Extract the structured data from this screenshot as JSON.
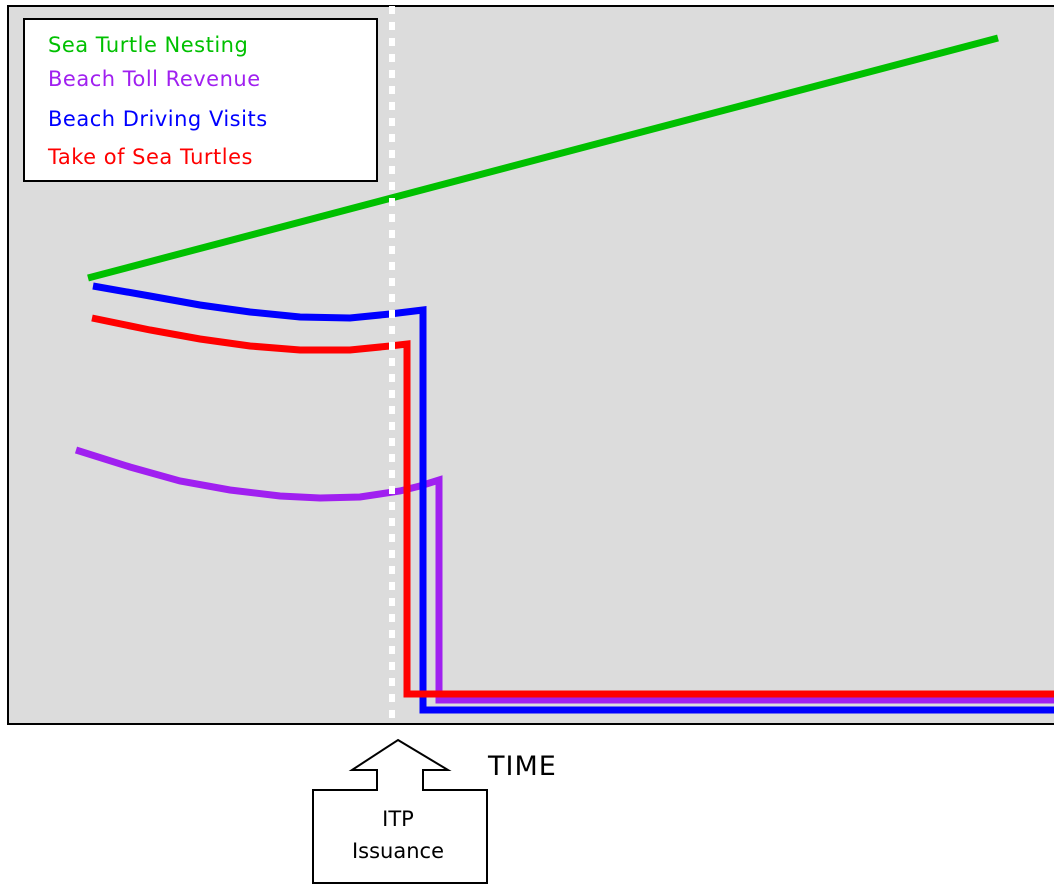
{
  "chart_data": {
    "type": "line",
    "title": "",
    "xlabel": "TIME",
    "ylabel": "",
    "plot_background": "#dcdcdc",
    "grid": false,
    "legend_position": "top-left",
    "event_marker": {
      "label_line1": "ITP",
      "label_line2": "Issuance",
      "line_color": "#ffffff",
      "line_style": "dotted"
    },
    "series": [
      {
        "name": "Sea Turtle Nesting",
        "color": "#00c000"
      },
      {
        "name": "Beach Toll Revenue",
        "color": "#a020f0"
      },
      {
        "name": "Beach Driving Visits",
        "color": "#0000ff"
      },
      {
        "name": "Take of Sea Turtles",
        "color": "#ff0000"
      }
    ]
  }
}
